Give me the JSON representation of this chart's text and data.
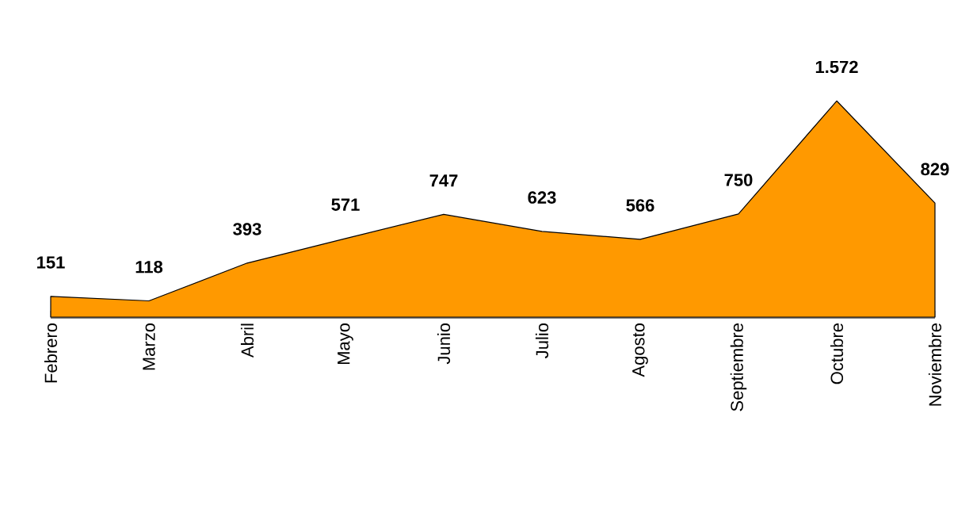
{
  "chart_data": {
    "type": "area",
    "categories": [
      "Febrero",
      "Marzo",
      "Abril",
      "Mayo",
      "Junio",
      "Julio",
      "Agosto",
      "Septiembre",
      "Octubre",
      "Noviembre"
    ],
    "values": [
      151,
      118,
      393,
      571,
      747,
      623,
      566,
      750,
      1572,
      829
    ],
    "value_labels": [
      "151",
      "118",
      "393",
      "571",
      "747",
      "623",
      "566",
      "750",
      "1.572",
      "829"
    ],
    "color": "#ff9900"
  }
}
